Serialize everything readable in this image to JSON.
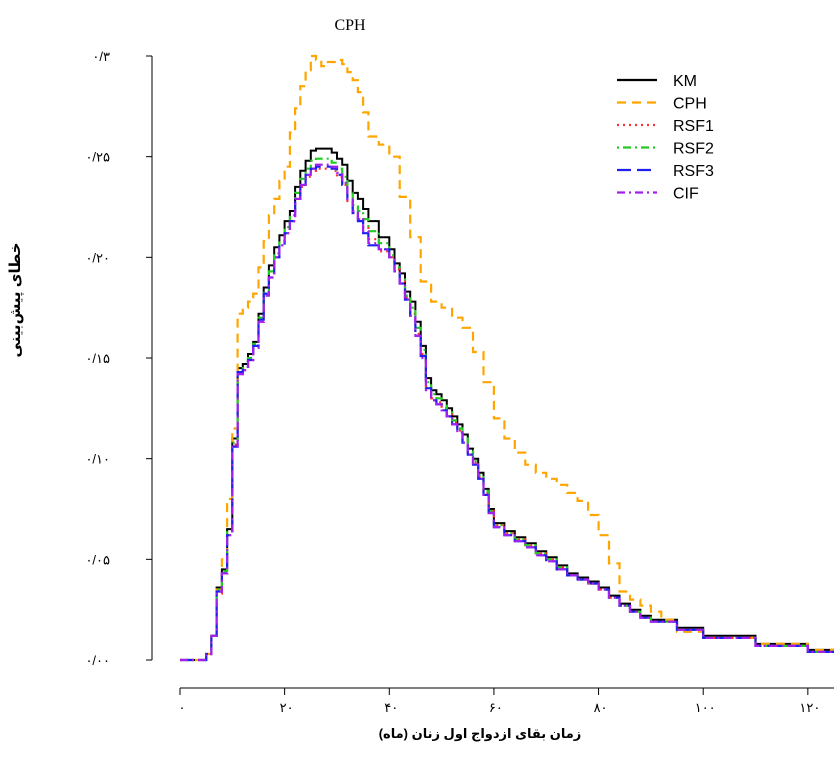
{
  "chart_data": {
    "type": "line",
    "title": "CPH",
    "xlabel": "زمان بقای ازدواج اول زنان (ماه)",
    "ylabel": "خطای پیش‌بینی",
    "xlim": [
      0,
      125
    ],
    "ylim": [
      0,
      0.3
    ],
    "x_ticks": [
      0,
      20,
      40,
      60,
      80,
      100,
      120
    ],
    "x_tick_labels": [
      "۰",
      "۲۰",
      "۴۰",
      "۶۰",
      "۸۰",
      "۱۰۰",
      "۱۲۰"
    ],
    "y_ticks": [
      0,
      0.05,
      0.1,
      0.15,
      0.2,
      0.25,
      0.3
    ],
    "y_tick_labels": [
      "۰/۰۰",
      "۰/۰۵",
      "۰/۱۰",
      "۰/۱۵",
      "۰/۲۰",
      "۰/۲۵",
      "۰/۳"
    ],
    "grid": false,
    "legend_position": "top-right",
    "series": [
      {
        "name": "KM",
        "color": "#000000",
        "dash": "solid",
        "x": [
          0,
          5,
          6,
          7,
          8,
          9,
          10,
          11,
          12,
          13,
          14,
          15,
          16,
          17,
          18,
          19,
          20,
          21,
          22,
          23,
          24,
          25,
          26,
          28,
          29,
          30,
          31,
          32,
          33,
          34,
          35,
          36,
          38,
          40,
          41,
          42,
          43,
          44,
          45,
          46,
          47,
          48,
          49,
          50,
          51,
          52,
          53,
          54,
          55,
          56,
          57,
          58,
          59,
          60,
          62,
          64,
          66,
          68,
          70,
          72,
          74,
          76,
          78,
          80,
          82,
          84,
          86,
          88,
          90,
          95,
          100,
          110,
          120,
          125
        ],
        "y": [
          0,
          0.003,
          0.012,
          0.036,
          0.045,
          0.065,
          0.11,
          0.145,
          0.147,
          0.152,
          0.158,
          0.172,
          0.185,
          0.196,
          0.205,
          0.211,
          0.218,
          0.223,
          0.235,
          0.243,
          0.248,
          0.253,
          0.254,
          0.254,
          0.252,
          0.249,
          0.246,
          0.238,
          0.232,
          0.229,
          0.224,
          0.218,
          0.21,
          0.204,
          0.197,
          0.192,
          0.183,
          0.178,
          0.168,
          0.156,
          0.14,
          0.134,
          0.132,
          0.129,
          0.125,
          0.121,
          0.117,
          0.112,
          0.105,
          0.1,
          0.093,
          0.085,
          0.075,
          0.068,
          0.064,
          0.061,
          0.058,
          0.054,
          0.051,
          0.047,
          0.043,
          0.041,
          0.039,
          0.036,
          0.032,
          0.028,
          0.025,
          0.022,
          0.02,
          0.016,
          0.012,
          0.008,
          0.005,
          0.005
        ]
      },
      {
        "name": "CPH",
        "color": "#ffa500",
        "dash": "dashed",
        "x": [
          0,
          5,
          6,
          7,
          8,
          9,
          10,
          11,
          12,
          13,
          14,
          15,
          16,
          17,
          18,
          19,
          20,
          21,
          22,
          23,
          24,
          25,
          26,
          27,
          28,
          30,
          31,
          32,
          33,
          34,
          35,
          36,
          38,
          40,
          42,
          44,
          46,
          48,
          50,
          52,
          54,
          56,
          58,
          60,
          62,
          64,
          66,
          68,
          70,
          72,
          74,
          76,
          78,
          80,
          82,
          84,
          86,
          88,
          90,
          92,
          95,
          100,
          110,
          120,
          125
        ],
        "y": [
          0,
          0.003,
          0.012,
          0.035,
          0.05,
          0.08,
          0.115,
          0.172,
          0.175,
          0.178,
          0.182,
          0.195,
          0.208,
          0.221,
          0.229,
          0.238,
          0.245,
          0.262,
          0.274,
          0.285,
          0.293,
          0.3,
          0.298,
          0.295,
          0.297,
          0.298,
          0.296,
          0.292,
          0.288,
          0.282,
          0.272,
          0.26,
          0.256,
          0.25,
          0.23,
          0.21,
          0.188,
          0.178,
          0.175,
          0.17,
          0.165,
          0.153,
          0.138,
          0.12,
          0.11,
          0.103,
          0.097,
          0.093,
          0.09,
          0.087,
          0.083,
          0.079,
          0.072,
          0.062,
          0.048,
          0.034,
          0.03,
          0.027,
          0.024,
          0.02,
          0.014,
          0.011,
          0.008,
          0.005,
          0.005
        ]
      },
      {
        "name": "RSF1",
        "color": "#ff3030",
        "dash": "dotted",
        "x": [
          0,
          5,
          6,
          7,
          8,
          9,
          10,
          11,
          12,
          13,
          14,
          15,
          16,
          17,
          18,
          19,
          20,
          21,
          22,
          23,
          24,
          25,
          26,
          28,
          29,
          30,
          31,
          32,
          33,
          34,
          35,
          36,
          38,
          40,
          41,
          42,
          43,
          44,
          45,
          46,
          47,
          48,
          49,
          50,
          51,
          52,
          53,
          54,
          55,
          56,
          57,
          58,
          59,
          60,
          62,
          64,
          66,
          68,
          70,
          72,
          74,
          76,
          78,
          80,
          82,
          84,
          86,
          88,
          90,
          95,
          100,
          110,
          120,
          125
        ],
        "y": [
          0,
          0.003,
          0.012,
          0.033,
          0.043,
          0.062,
          0.107,
          0.142,
          0.144,
          0.149,
          0.155,
          0.168,
          0.182,
          0.19,
          0.2,
          0.206,
          0.212,
          0.218,
          0.229,
          0.235,
          0.24,
          0.243,
          0.244,
          0.244,
          0.243,
          0.24,
          0.236,
          0.228,
          0.222,
          0.219,
          0.215,
          0.209,
          0.203,
          0.2,
          0.194,
          0.188,
          0.18,
          0.172,
          0.162,
          0.152,
          0.136,
          0.13,
          0.128,
          0.125,
          0.122,
          0.118,
          0.114,
          0.109,
          0.103,
          0.098,
          0.091,
          0.083,
          0.074,
          0.067,
          0.063,
          0.06,
          0.057,
          0.053,
          0.05,
          0.046,
          0.042,
          0.04,
          0.038,
          0.035,
          0.031,
          0.027,
          0.024,
          0.021,
          0.019,
          0.015,
          0.011,
          0.007,
          0.004,
          0.004
        ]
      },
      {
        "name": "RSF2",
        "color": "#22cc22",
        "dash": "dashdot",
        "x": [
          0,
          5,
          6,
          7,
          8,
          9,
          10,
          11,
          12,
          13,
          14,
          15,
          16,
          17,
          18,
          19,
          20,
          21,
          22,
          23,
          24,
          25,
          26,
          28,
          29,
          30,
          31,
          32,
          33,
          34,
          35,
          36,
          38,
          40,
          41,
          42,
          43,
          44,
          45,
          46,
          47,
          48,
          49,
          50,
          51,
          52,
          53,
          54,
          55,
          56,
          57,
          58,
          59,
          60,
          62,
          64,
          66,
          68,
          70,
          72,
          74,
          76,
          78,
          80,
          82,
          84,
          86,
          88,
          90,
          95,
          100,
          110,
          120,
          125
        ],
        "y": [
          0,
          0.003,
          0.012,
          0.035,
          0.044,
          0.064,
          0.108,
          0.143,
          0.145,
          0.15,
          0.157,
          0.17,
          0.183,
          0.193,
          0.202,
          0.208,
          0.215,
          0.221,
          0.232,
          0.239,
          0.244,
          0.248,
          0.249,
          0.249,
          0.247,
          0.244,
          0.24,
          0.232,
          0.226,
          0.223,
          0.219,
          0.213,
          0.207,
          0.201,
          0.195,
          0.189,
          0.181,
          0.175,
          0.165,
          0.154,
          0.138,
          0.132,
          0.13,
          0.127,
          0.123,
          0.119,
          0.115,
          0.11,
          0.104,
          0.099,
          0.092,
          0.084,
          0.074,
          0.067,
          0.063,
          0.06,
          0.057,
          0.053,
          0.05,
          0.046,
          0.042,
          0.04,
          0.038,
          0.035,
          0.031,
          0.027,
          0.024,
          0.021,
          0.019,
          0.015,
          0.011,
          0.007,
          0.004,
          0.004
        ]
      },
      {
        "name": "RSF3",
        "color": "#2020ee",
        "dash": "longdash",
        "x": [
          0,
          5,
          6,
          7,
          8,
          9,
          10,
          11,
          12,
          13,
          14,
          15,
          16,
          17,
          18,
          19,
          20,
          21,
          22,
          23,
          24,
          25,
          26,
          28,
          29,
          30,
          31,
          32,
          33,
          34,
          35,
          36,
          38,
          40,
          41,
          42,
          43,
          44,
          45,
          46,
          47,
          48,
          49,
          50,
          51,
          52,
          53,
          54,
          55,
          56,
          57,
          58,
          59,
          60,
          62,
          64,
          66,
          68,
          70,
          72,
          74,
          76,
          78,
          80,
          82,
          84,
          86,
          88,
          90,
          95,
          100,
          110,
          120,
          125
        ],
        "y": [
          0,
          0.003,
          0.012,
          0.034,
          0.043,
          0.062,
          0.106,
          0.143,
          0.145,
          0.149,
          0.156,
          0.169,
          0.182,
          0.19,
          0.2,
          0.206,
          0.212,
          0.218,
          0.229,
          0.236,
          0.241,
          0.244,
          0.245,
          0.245,
          0.244,
          0.241,
          0.236,
          0.228,
          0.222,
          0.218,
          0.212,
          0.206,
          0.204,
          0.2,
          0.193,
          0.187,
          0.179,
          0.171,
          0.161,
          0.151,
          0.135,
          0.129,
          0.127,
          0.124,
          0.121,
          0.117,
          0.113,
          0.108,
          0.102,
          0.097,
          0.09,
          0.082,
          0.073,
          0.066,
          0.062,
          0.059,
          0.056,
          0.052,
          0.049,
          0.045,
          0.042,
          0.04,
          0.038,
          0.035,
          0.031,
          0.027,
          0.024,
          0.021,
          0.019,
          0.015,
          0.011,
          0.007,
          0.004,
          0.004
        ]
      },
      {
        "name": "CIF",
        "color": "#a020f0",
        "dash": "dashdotted",
        "x": [
          0,
          5,
          6,
          7,
          8,
          9,
          10,
          11,
          12,
          13,
          14,
          15,
          16,
          17,
          18,
          19,
          20,
          21,
          22,
          23,
          24,
          25,
          26,
          28,
          29,
          30,
          31,
          32,
          33,
          34,
          35,
          36,
          38,
          40,
          41,
          42,
          43,
          44,
          45,
          46,
          47,
          48,
          49,
          50,
          51,
          52,
          53,
          54,
          55,
          56,
          57,
          58,
          59,
          60,
          62,
          64,
          66,
          68,
          70,
          72,
          74,
          76,
          78,
          80,
          82,
          84,
          86,
          88,
          90,
          95,
          100,
          110,
          120,
          125
        ],
        "y": [
          0,
          0.003,
          0.012,
          0.034,
          0.043,
          0.062,
          0.106,
          0.142,
          0.144,
          0.149,
          0.155,
          0.168,
          0.181,
          0.19,
          0.2,
          0.206,
          0.212,
          0.218,
          0.229,
          0.236,
          0.241,
          0.244,
          0.246,
          0.246,
          0.245,
          0.242,
          0.237,
          0.229,
          0.223,
          0.219,
          0.213,
          0.207,
          0.204,
          0.2,
          0.193,
          0.187,
          0.179,
          0.171,
          0.161,
          0.15,
          0.134,
          0.129,
          0.127,
          0.124,
          0.121,
          0.117,
          0.113,
          0.108,
          0.102,
          0.097,
          0.09,
          0.082,
          0.073,
          0.066,
          0.062,
          0.059,
          0.056,
          0.052,
          0.049,
          0.045,
          0.042,
          0.04,
          0.038,
          0.035,
          0.031,
          0.027,
          0.024,
          0.021,
          0.019,
          0.015,
          0.011,
          0.007,
          0.004,
          0.004
        ]
      }
    ]
  }
}
